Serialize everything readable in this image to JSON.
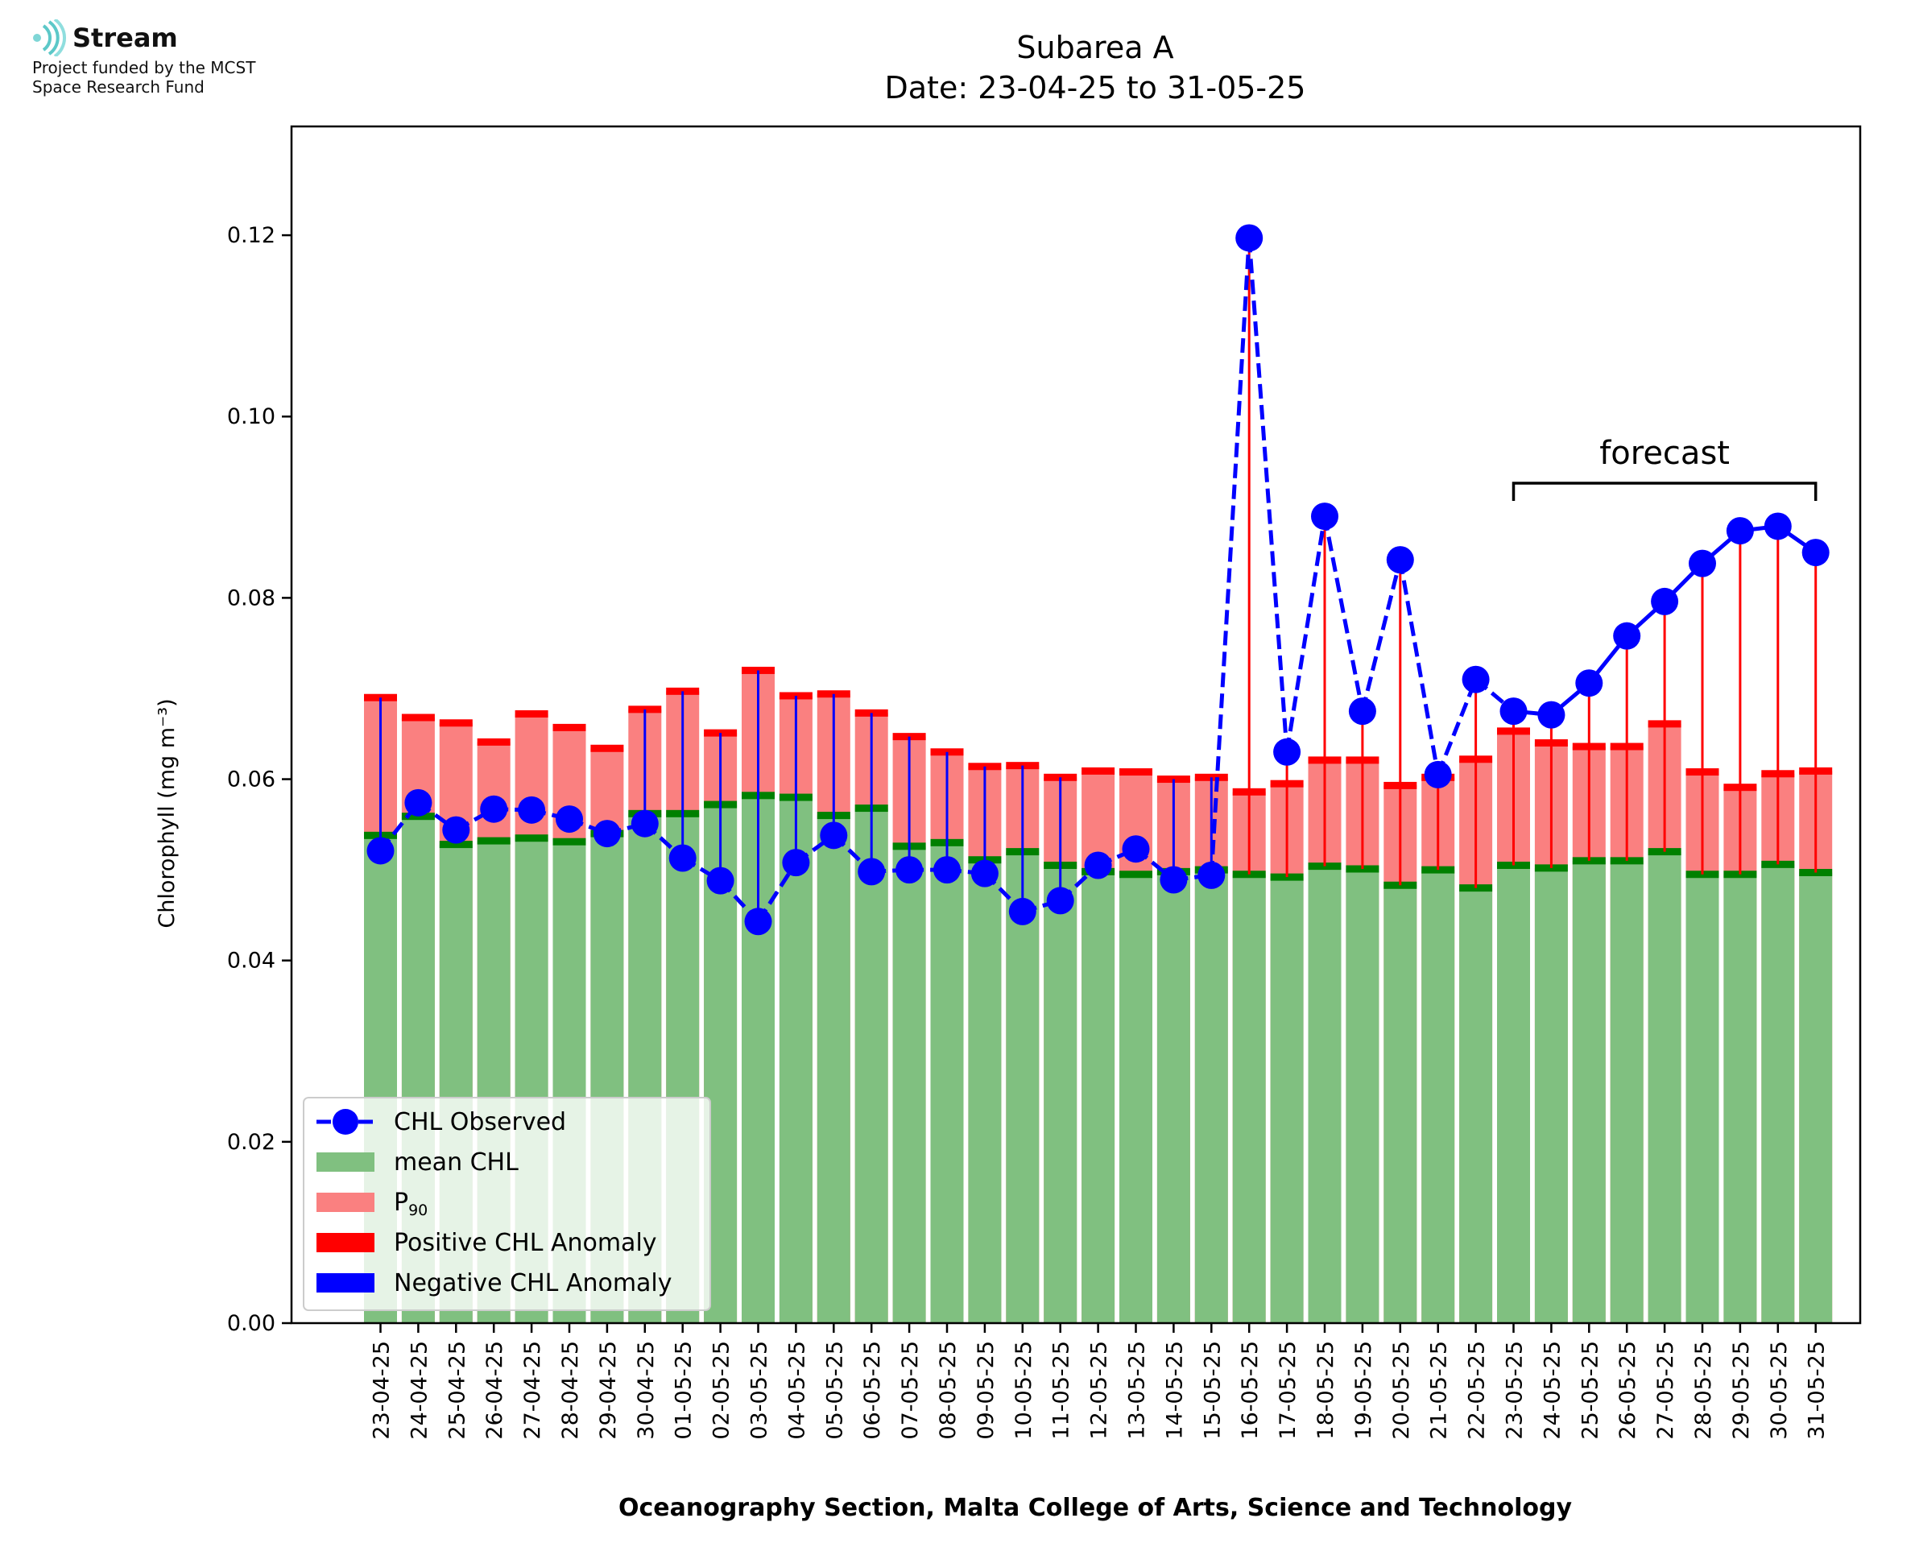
{
  "logo": {
    "name": "Stream",
    "line1": "Project funded by the MCST",
    "line2": "Space Research Fund"
  },
  "chart_data": {
    "type": "bar",
    "title": "Subarea A",
    "subtitle": "Date: 23-04-25 to 31-05-25",
    "xlabel": "Oceanography Section, Malta College of Arts, Science and Technology",
    "ylabel": "Chlorophyll (mg m⁻³)",
    "ylim": [
      0,
      0.132
    ],
    "yticks": [
      "0.00",
      "0.02",
      "0.04",
      "0.06",
      "0.08",
      "0.10",
      "0.12"
    ],
    "ytick_values": [
      0,
      0.02,
      0.04,
      0.06,
      0.08,
      0.1,
      0.12
    ],
    "grid": false,
    "legend_position": "lower-left",
    "legend": [
      "CHL Observed",
      "mean CHL",
      "P90",
      "Positive CHL Anomaly",
      "Negative CHL Anomaly"
    ],
    "annotation": "forecast",
    "forecast_range": [
      "23-05-25",
      "31-05-25"
    ],
    "categories": [
      "23-04-25",
      "24-04-25",
      "25-04-25",
      "26-04-25",
      "27-04-25",
      "28-04-25",
      "29-04-25",
      "30-04-25",
      "01-05-25",
      "02-05-25",
      "03-05-25",
      "04-05-25",
      "05-05-25",
      "06-05-25",
      "07-05-25",
      "08-05-25",
      "09-05-25",
      "10-05-25",
      "11-05-25",
      "12-05-25",
      "13-05-25",
      "14-05-25",
      "15-05-25",
      "16-05-25",
      "17-05-25",
      "18-05-25",
      "19-05-25",
      "20-05-25",
      "21-05-25",
      "22-05-25",
      "23-05-25",
      "24-05-25",
      "25-05-25",
      "26-05-25",
      "27-05-25",
      "28-05-25",
      "29-05-25",
      "30-05-25",
      "31-05-25"
    ],
    "series": [
      {
        "name": "mean CHL",
        "values": [
          0.0538,
          0.0559,
          0.0528,
          0.0532,
          0.0535,
          0.0531,
          0.054,
          0.0562,
          0.0562,
          0.0572,
          0.0582,
          0.058,
          0.056,
          0.0568,
          0.0526,
          0.053,
          0.0511,
          0.052,
          0.0505,
          0.0498,
          0.0495,
          0.0498,
          0.05,
          0.0495,
          0.0492,
          0.0504,
          0.0501,
          0.0483,
          0.05,
          0.048,
          0.0505,
          0.0502,
          0.051,
          0.051,
          0.052,
          0.0495,
          0.0495,
          0.0506,
          0.0497
        ]
      },
      {
        "name": "P90",
        "values": [
          0.069,
          0.0668,
          0.0662,
          0.0641,
          0.0672,
          0.0657,
          0.0634,
          0.0677,
          0.0697,
          0.0651,
          0.072,
          0.0692,
          0.0694,
          0.0673,
          0.0647,
          0.063,
          0.0614,
          0.0615,
          0.0602,
          0.0609,
          0.0608,
          0.06,
          0.0602,
          0.0586,
          0.0595,
          0.0621,
          0.0621,
          0.0593,
          0.0602,
          0.0622,
          0.0653,
          0.064,
          0.0636,
          0.0636,
          0.0661,
          0.0608,
          0.0591,
          0.0606,
          0.0609
        ]
      },
      {
        "name": "CHL Observed",
        "values": [
          0.0521,
          0.0574,
          0.0544,
          0.0567,
          0.0566,
          0.0556,
          0.054,
          0.0551,
          0.0513,
          0.0488,
          0.0443,
          0.0508,
          0.0538,
          0.0498,
          0.05,
          0.05,
          0.0496,
          0.0454,
          0.0466,
          0.0505,
          0.0523,
          0.0489,
          0.0494,
          0.1197,
          0.063,
          0.089,
          0.0675,
          0.0842,
          0.0605,
          0.071,
          0.0675,
          0.0671,
          0.0706,
          0.0758,
          0.0796,
          0.0838,
          0.0874,
          0.0879,
          0.085
        ]
      }
    ]
  }
}
